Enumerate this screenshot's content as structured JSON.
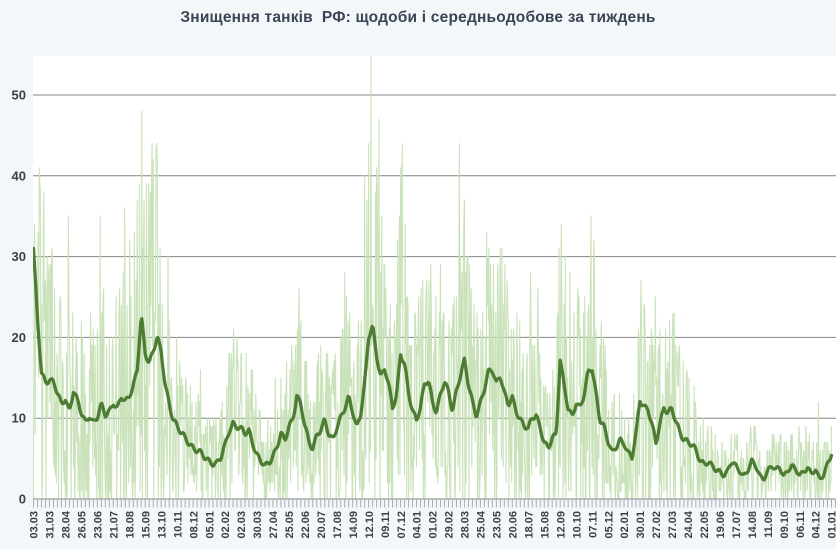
{
  "title": "Знищення танків  РФ: щодоби і середньодобове за тиждень",
  "colors": {
    "page_background": "#f3f7fa",
    "plot_background": "#ffffff",
    "gridline": "#848484",
    "tick": "#a9adb2",
    "axis_text": "#3d3f42",
    "title_text": "#3a4454",
    "daily_line": "#c7e0b6",
    "average_line": "#4d7c33"
  },
  "y_axis": {
    "ticks": [
      0,
      10,
      20,
      30,
      40,
      50
    ],
    "max_visible": 54.8
  },
  "x_axis": {
    "tick_interval_days": 7,
    "label_every_weeks": 4,
    "labels": [
      "03.03",
      "31.03",
      "28.04",
      "26.05",
      "23.06",
      "21.07",
      "18.08",
      "15.09",
      "13.10",
      "10.11",
      "08.12",
      "05.01",
      "02.02",
      "02.03",
      "30.03",
      "27.04",
      "25.05",
      "22.06",
      "20.07",
      "17.08",
      "14.09",
      "12.10",
      "09.11",
      "07.12",
      "04.01",
      "01.02",
      "29.02",
      "28.03",
      "25.04",
      "23.05",
      "20.06",
      "18.07",
      "15.08",
      "12.09",
      "10.10",
      "07.11",
      "05.12",
      "02.01",
      "30.01",
      "27.02",
      "27.03",
      "24.04",
      "22.05",
      "19.06",
      "17.07",
      "14.08",
      "11.09",
      "09.10",
      "06.11",
      "04.12",
      "01.01"
    ]
  },
  "chart_data": {
    "type": "line",
    "title": "Знищення танків РФ: щодоби і середньодобове за тиждень",
    "grid": "horizontal",
    "legend": "none",
    "ylim": [
      0,
      54.8
    ],
    "x_range_days": 1400,
    "x_first_tick_label": "03.03",
    "x_last_tick_label": "01.01",
    "series": [
      {
        "name": "щодоби",
        "kind": "daily",
        "color": "#c7e0b6",
        "values_are_integers": true,
        "typical_range": [
          0,
          35
        ],
        "relative_variation": 1.28,
        "notable_daily_spikes": [
          [
            1,
            30
          ],
          [
            2,
            34
          ],
          [
            4,
            27
          ],
          [
            33,
            30
          ],
          [
            61,
            35
          ],
          [
            117,
            35
          ],
          [
            193,
            30
          ],
          [
            208,
            44
          ],
          [
            236,
            30
          ],
          [
            581,
            40
          ],
          [
            592,
            55
          ],
          [
            647,
            44
          ],
          [
            749,
            30
          ],
          [
            807,
            29
          ],
          [
            872,
            28
          ],
          [
            925,
            26
          ],
          [
            977,
            26
          ],
          [
            1091,
            25
          ],
          [
            1377,
            12
          ]
        ]
      },
      {
        "name": "середньодобове за тиждень",
        "kind": "weekly_average",
        "color": "#4d7c33",
        "step_days": 7,
        "values": [
          31,
          22,
          15.5,
          14.5,
          15,
          14.5,
          13,
          11.5,
          12.5,
          11,
          13.5,
          12,
          10.5,
          9.5,
          10.5,
          9.5,
          10,
          11.5,
          10.5,
          11,
          12,
          11,
          12.5,
          12,
          13,
          14,
          16,
          22.5,
          18,
          17,
          18.5,
          20,
          18,
          14,
          12,
          10,
          9,
          8,
          7.5,
          7,
          6.5,
          6,
          5.5,
          5,
          4.8,
          4.5,
          4.5,
          5,
          6.5,
          8.5,
          9.5,
          9,
          8.5,
          8,
          8.5,
          7,
          5.5,
          4.5,
          4,
          4.5,
          5.5,
          6.5,
          8,
          7,
          9,
          10,
          13,
          11.5,
          9,
          7,
          6.5,
          8,
          8.5,
          9.5,
          8,
          7.5,
          9,
          10,
          11,
          12.5,
          11,
          9,
          10.5,
          14,
          20,
          21.5,
          18,
          15,
          16,
          14,
          11.5,
          13,
          18,
          16.5,
          13,
          11,
          10,
          11.5,
          14,
          14.5,
          12,
          11,
          13,
          14.5,
          13,
          11,
          13.5,
          15.5,
          17,
          14,
          12,
          10.5,
          12,
          13.5,
          15.5,
          16,
          14.5,
          15.5,
          13,
          11.5,
          12.5,
          11,
          10,
          9,
          8.5,
          10,
          10.5,
          9,
          7,
          6,
          7.5,
          8,
          17.5,
          14,
          11,
          10,
          12,
          11.5,
          13,
          15.5,
          16,
          13,
          10,
          9,
          7,
          5.5,
          6.5,
          7.5,
          7,
          5.5,
          5,
          8,
          12.5,
          11.5,
          11,
          9,
          7,
          9.5,
          11.5,
          10.5,
          11,
          9.5,
          8.5,
          7.5,
          7,
          6.5,
          6,
          5,
          4.5,
          4.5,
          4,
          3.5,
          3.5,
          3,
          3.5,
          4.5,
          4,
          3.5,
          3,
          3.5,
          4.5,
          4,
          3,
          2.5,
          3.5,
          4,
          3.5,
          4,
          3,
          3.5,
          4,
          3.5,
          3,
          3.5,
          4,
          3,
          3.5,
          2.5,
          3,
          4.5,
          5.5
        ]
      }
    ]
  }
}
